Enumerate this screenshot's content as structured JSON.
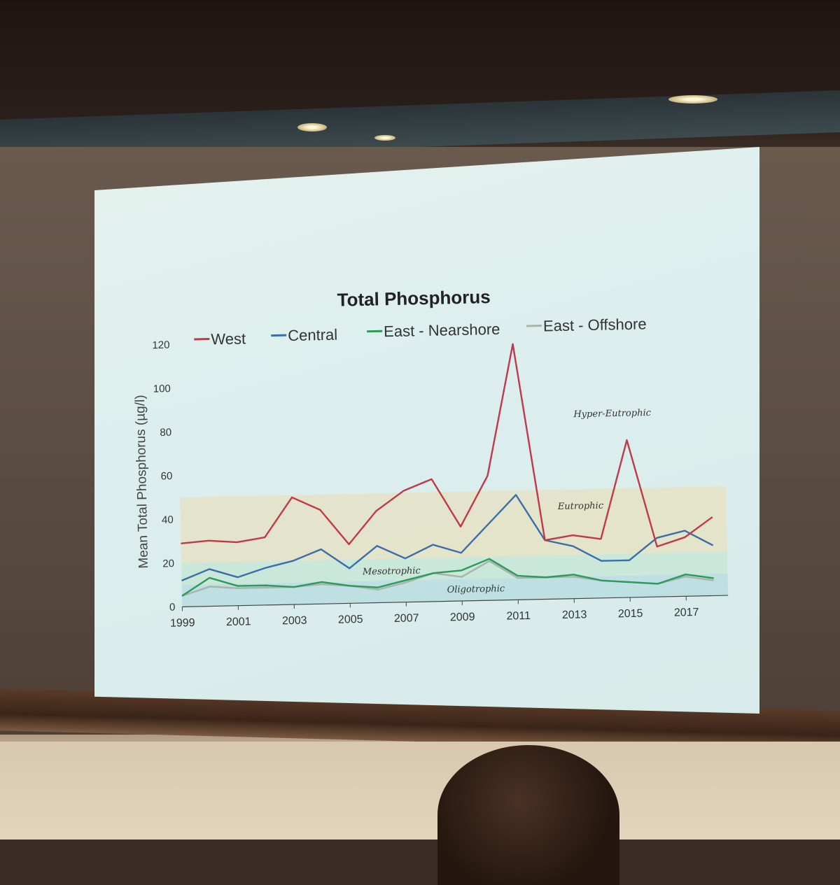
{
  "chart_data": {
    "type": "line",
    "title": "Total Phosphorus",
    "ylabel": "Mean Total Phosphorus (µg/l)",
    "xlabel": "",
    "ylim": [
      0,
      120
    ],
    "xlim": [
      1999,
      2018
    ],
    "yticks": [
      "0",
      "20",
      "40",
      "60",
      "80",
      "100",
      "120"
    ],
    "xticks": [
      "1999",
      "2001",
      "2003",
      "2005",
      "2007",
      "2009",
      "2011",
      "2013",
      "2015",
      "2017"
    ],
    "legend_position": "top",
    "grid": false,
    "bands": [
      {
        "label": "Oligotrophic",
        "from": 0,
        "to": 10,
        "color": "#b9dde0"
      },
      {
        "label": "Mesotrophic",
        "from": 10,
        "to": 20,
        "color": "#c7e6d6"
      },
      {
        "label": "Eutrophic",
        "from": 20,
        "to": 50,
        "color": "#e5e2c6"
      },
      {
        "label": "Hyper-Eutrophic",
        "from": 50,
        "to": 120,
        "color": "none"
      }
    ],
    "x": [
      1999,
      2000,
      2001,
      2002,
      2003,
      2004,
      2005,
      2006,
      2007,
      2008,
      2009,
      2010,
      2011,
      2012,
      2013,
      2014,
      2015,
      2016,
      2017,
      2018
    ],
    "series": [
      {
        "name": "West",
        "color": "#c0394a",
        "values": [
          29,
          30,
          29,
          31,
          49,
          43,
          27,
          42,
          51,
          56,
          34,
          57,
          117,
          27,
          29,
          27,
          72,
          23,
          27,
          36
        ]
      },
      {
        "name": "Central",
        "color": "#3b6ea8",
        "values": [
          12,
          17,
          13,
          17,
          20,
          25,
          16,
          26,
          20,
          26,
          22,
          35,
          48,
          27,
          24,
          17,
          17,
          27,
          30,
          23
        ]
      },
      {
        "name": "East - Nearshore",
        "color": "#2e9a5a",
        "values": [
          5,
          13,
          9,
          9,
          8,
          10,
          8,
          7,
          10,
          13,
          14,
          19,
          11,
          10,
          11,
          8,
          7,
          6,
          10,
          8
        ]
      },
      {
        "name": "East - Offshore",
        "color": "#aab4ae",
        "values": [
          5,
          9,
          8,
          8,
          8,
          9,
          8,
          6,
          9,
          13,
          11,
          18,
          10,
          10,
          10,
          8,
          7,
          6,
          9,
          7
        ]
      }
    ]
  }
}
